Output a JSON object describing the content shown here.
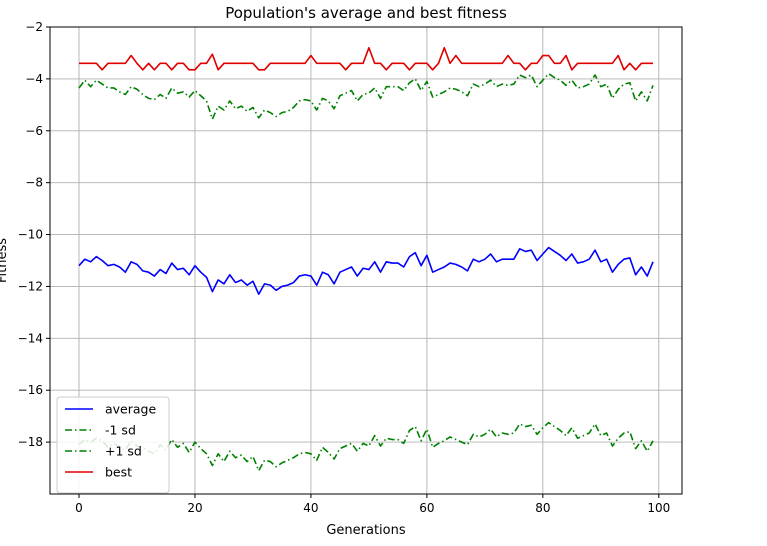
{
  "chart_data": {
    "type": "line",
    "title": "Population's average and best fitness",
    "xlabel": "Generations",
    "ylabel": "Fitness",
    "xlim": [
      -5,
      104
    ],
    "ylim": [
      -20,
      -2
    ],
    "xticks": [
      0,
      20,
      40,
      60,
      80,
      100
    ],
    "yticks": [
      -18,
      -16,
      -14,
      -12,
      -10,
      -8,
      -6,
      -4,
      -2
    ],
    "grid": true,
    "legend_position": "lower-left",
    "x": [
      0,
      1,
      2,
      3,
      4,
      5,
      6,
      7,
      8,
      9,
      10,
      11,
      12,
      13,
      14,
      15,
      16,
      17,
      18,
      19,
      20,
      21,
      22,
      23,
      24,
      25,
      26,
      27,
      28,
      29,
      30,
      31,
      32,
      33,
      34,
      35,
      36,
      37,
      38,
      39,
      40,
      41,
      42,
      43,
      44,
      45,
      46,
      47,
      48,
      49,
      50,
      51,
      52,
      53,
      54,
      55,
      56,
      57,
      58,
      59,
      60,
      61,
      62,
      63,
      64,
      65,
      66,
      67,
      68,
      69,
      70,
      71,
      72,
      73,
      74,
      75,
      76,
      77,
      78,
      79,
      80,
      81,
      82,
      83,
      84,
      85,
      86,
      87,
      88,
      89,
      90,
      91,
      92,
      93,
      94,
      95,
      96,
      97,
      98,
      99
    ],
    "series": [
      {
        "name": "average",
        "color": "#0000ff",
        "style": "solid",
        "values": [
          -11.2,
          -10.95,
          -11.05,
          -10.85,
          -11.0,
          -11.2,
          -11.15,
          -11.25,
          -11.45,
          -11.05,
          -11.15,
          -11.4,
          -11.45,
          -11.6,
          -11.35,
          -11.5,
          -11.1,
          -11.35,
          -11.3,
          -11.55,
          -11.2,
          -11.45,
          -11.65,
          -12.2,
          -11.75,
          -11.9,
          -11.55,
          -11.85,
          -11.75,
          -11.95,
          -11.8,
          -12.3,
          -11.9,
          -11.95,
          -12.15,
          -12.0,
          -11.95,
          -11.85,
          -11.6,
          -11.55,
          -11.6,
          -11.95,
          -11.45,
          -11.55,
          -11.9,
          -11.45,
          -11.35,
          -11.25,
          -11.6,
          -11.3,
          -11.35,
          -11.05,
          -11.45,
          -11.05,
          -11.1,
          -11.1,
          -11.25,
          -10.85,
          -10.7,
          -11.2,
          -10.8,
          -11.45,
          -11.35,
          -11.25,
          -11.1,
          -11.15,
          -11.25,
          -11.4,
          -10.95,
          -11.05,
          -10.95,
          -10.75,
          -11.05,
          -10.95,
          -10.95,
          -10.95,
          -10.55,
          -10.65,
          -10.6,
          -11.0,
          -10.75,
          -10.5,
          -10.65,
          -10.8,
          -11.0,
          -10.75,
          -11.1,
          -11.05,
          -10.95,
          -10.6,
          -11.05,
          -10.95,
          -11.45,
          -11.15,
          -10.95,
          -10.9,
          -11.55,
          -11.25,
          -11.6,
          -11.05
        ]
      },
      {
        "name": "-1 sd",
        "color": "#008000",
        "style": "dashdot",
        "values": [
          -18.1,
          -17.9,
          -18.0,
          -17.85,
          -17.95,
          -18.2,
          -18.05,
          -18.2,
          -18.3,
          -17.95,
          -18.15,
          -18.2,
          -18.35,
          -18.45,
          -18.1,
          -18.3,
          -17.9,
          -18.2,
          -18.05,
          -18.4,
          -18.0,
          -18.25,
          -18.45,
          -18.9,
          -18.45,
          -18.75,
          -18.35,
          -18.6,
          -18.5,
          -18.75,
          -18.55,
          -19.1,
          -18.7,
          -18.75,
          -18.95,
          -18.8,
          -18.7,
          -18.6,
          -18.45,
          -18.4,
          -18.45,
          -18.7,
          -18.2,
          -18.4,
          -18.65,
          -18.25,
          -18.15,
          -18.05,
          -18.35,
          -18.05,
          -18.15,
          -17.75,
          -18.15,
          -17.85,
          -17.9,
          -17.9,
          -18.05,
          -17.55,
          -17.4,
          -17.95,
          -17.5,
          -18.2,
          -18.05,
          -17.95,
          -17.8,
          -17.9,
          -18.0,
          -18.1,
          -17.7,
          -17.8,
          -17.7,
          -17.5,
          -17.8,
          -17.65,
          -17.7,
          -17.65,
          -17.3,
          -17.4,
          -17.35,
          -17.7,
          -17.45,
          -17.25,
          -17.4,
          -17.55,
          -17.75,
          -17.45,
          -17.85,
          -17.75,
          -17.65,
          -17.3,
          -17.75,
          -17.65,
          -18.15,
          -17.85,
          -17.65,
          -17.6,
          -18.25,
          -17.95,
          -18.35,
          -17.95
        ]
      },
      {
        "name": "+1 sd",
        "color": "#008000",
        "style": "dashdot",
        "values": [
          -4.35,
          -4.05,
          -4.3,
          -4.05,
          -4.2,
          -4.35,
          -4.35,
          -4.5,
          -4.6,
          -4.3,
          -4.4,
          -4.6,
          -4.75,
          -4.8,
          -4.6,
          -4.75,
          -4.35,
          -4.55,
          -4.5,
          -4.7,
          -4.45,
          -4.65,
          -4.85,
          -5.55,
          -5.05,
          -5.2,
          -4.85,
          -5.15,
          -5.05,
          -5.25,
          -5.1,
          -5.5,
          -5.2,
          -5.3,
          -5.45,
          -5.3,
          -5.25,
          -5.1,
          -4.85,
          -4.8,
          -4.85,
          -5.2,
          -4.75,
          -4.85,
          -5.15,
          -4.65,
          -4.55,
          -4.45,
          -4.85,
          -4.6,
          -4.55,
          -4.35,
          -4.75,
          -4.3,
          -4.3,
          -4.3,
          -4.45,
          -4.15,
          -4.0,
          -4.45,
          -4.1,
          -4.7,
          -4.6,
          -4.5,
          -4.35,
          -4.4,
          -4.5,
          -4.65,
          -4.2,
          -4.3,
          -4.2,
          -4.05,
          -4.3,
          -4.2,
          -4.25,
          -4.2,
          -3.85,
          -3.95,
          -3.85,
          -4.3,
          -4.05,
          -3.8,
          -3.95,
          -4.05,
          -4.25,
          -4.05,
          -4.35,
          -4.3,
          -4.2,
          -3.85,
          -4.3,
          -4.2,
          -4.75,
          -4.4,
          -4.2,
          -4.15,
          -4.85,
          -4.5,
          -4.85,
          -4.25
        ]
      },
      {
        "name": "best",
        "color": "#e00000",
        "style": "solid",
        "values": [
          -3.4,
          -3.4,
          -3.4,
          -3.4,
          -3.65,
          -3.4,
          -3.4,
          -3.4,
          -3.4,
          -3.1,
          -3.4,
          -3.65,
          -3.4,
          -3.65,
          -3.4,
          -3.4,
          -3.65,
          -3.4,
          -3.4,
          -3.65,
          -3.65,
          -3.4,
          -3.4,
          -3.05,
          -3.65,
          -3.4,
          -3.4,
          -3.4,
          -3.4,
          -3.4,
          -3.4,
          -3.65,
          -3.65,
          -3.4,
          -3.4,
          -3.4,
          -3.4,
          -3.4,
          -3.4,
          -3.4,
          -3.1,
          -3.4,
          -3.4,
          -3.4,
          -3.4,
          -3.4,
          -3.65,
          -3.4,
          -3.4,
          -3.4,
          -2.8,
          -3.4,
          -3.4,
          -3.65,
          -3.4,
          -3.4,
          -3.4,
          -3.65,
          -3.4,
          -3.4,
          -3.4,
          -3.65,
          -3.4,
          -2.8,
          -3.4,
          -3.1,
          -3.4,
          -3.4,
          -3.4,
          -3.4,
          -3.4,
          -3.4,
          -3.4,
          -3.4,
          -3.1,
          -3.4,
          -3.4,
          -3.65,
          -3.4,
          -3.4,
          -3.1,
          -3.1,
          -3.4,
          -3.4,
          -3.1,
          -3.65,
          -3.4,
          -3.4,
          -3.4,
          -3.4,
          -3.4,
          -3.4,
          -3.4,
          -3.1,
          -3.65,
          -3.4,
          -3.65,
          -3.4,
          -3.4,
          -3.4
        ]
      }
    ]
  }
}
